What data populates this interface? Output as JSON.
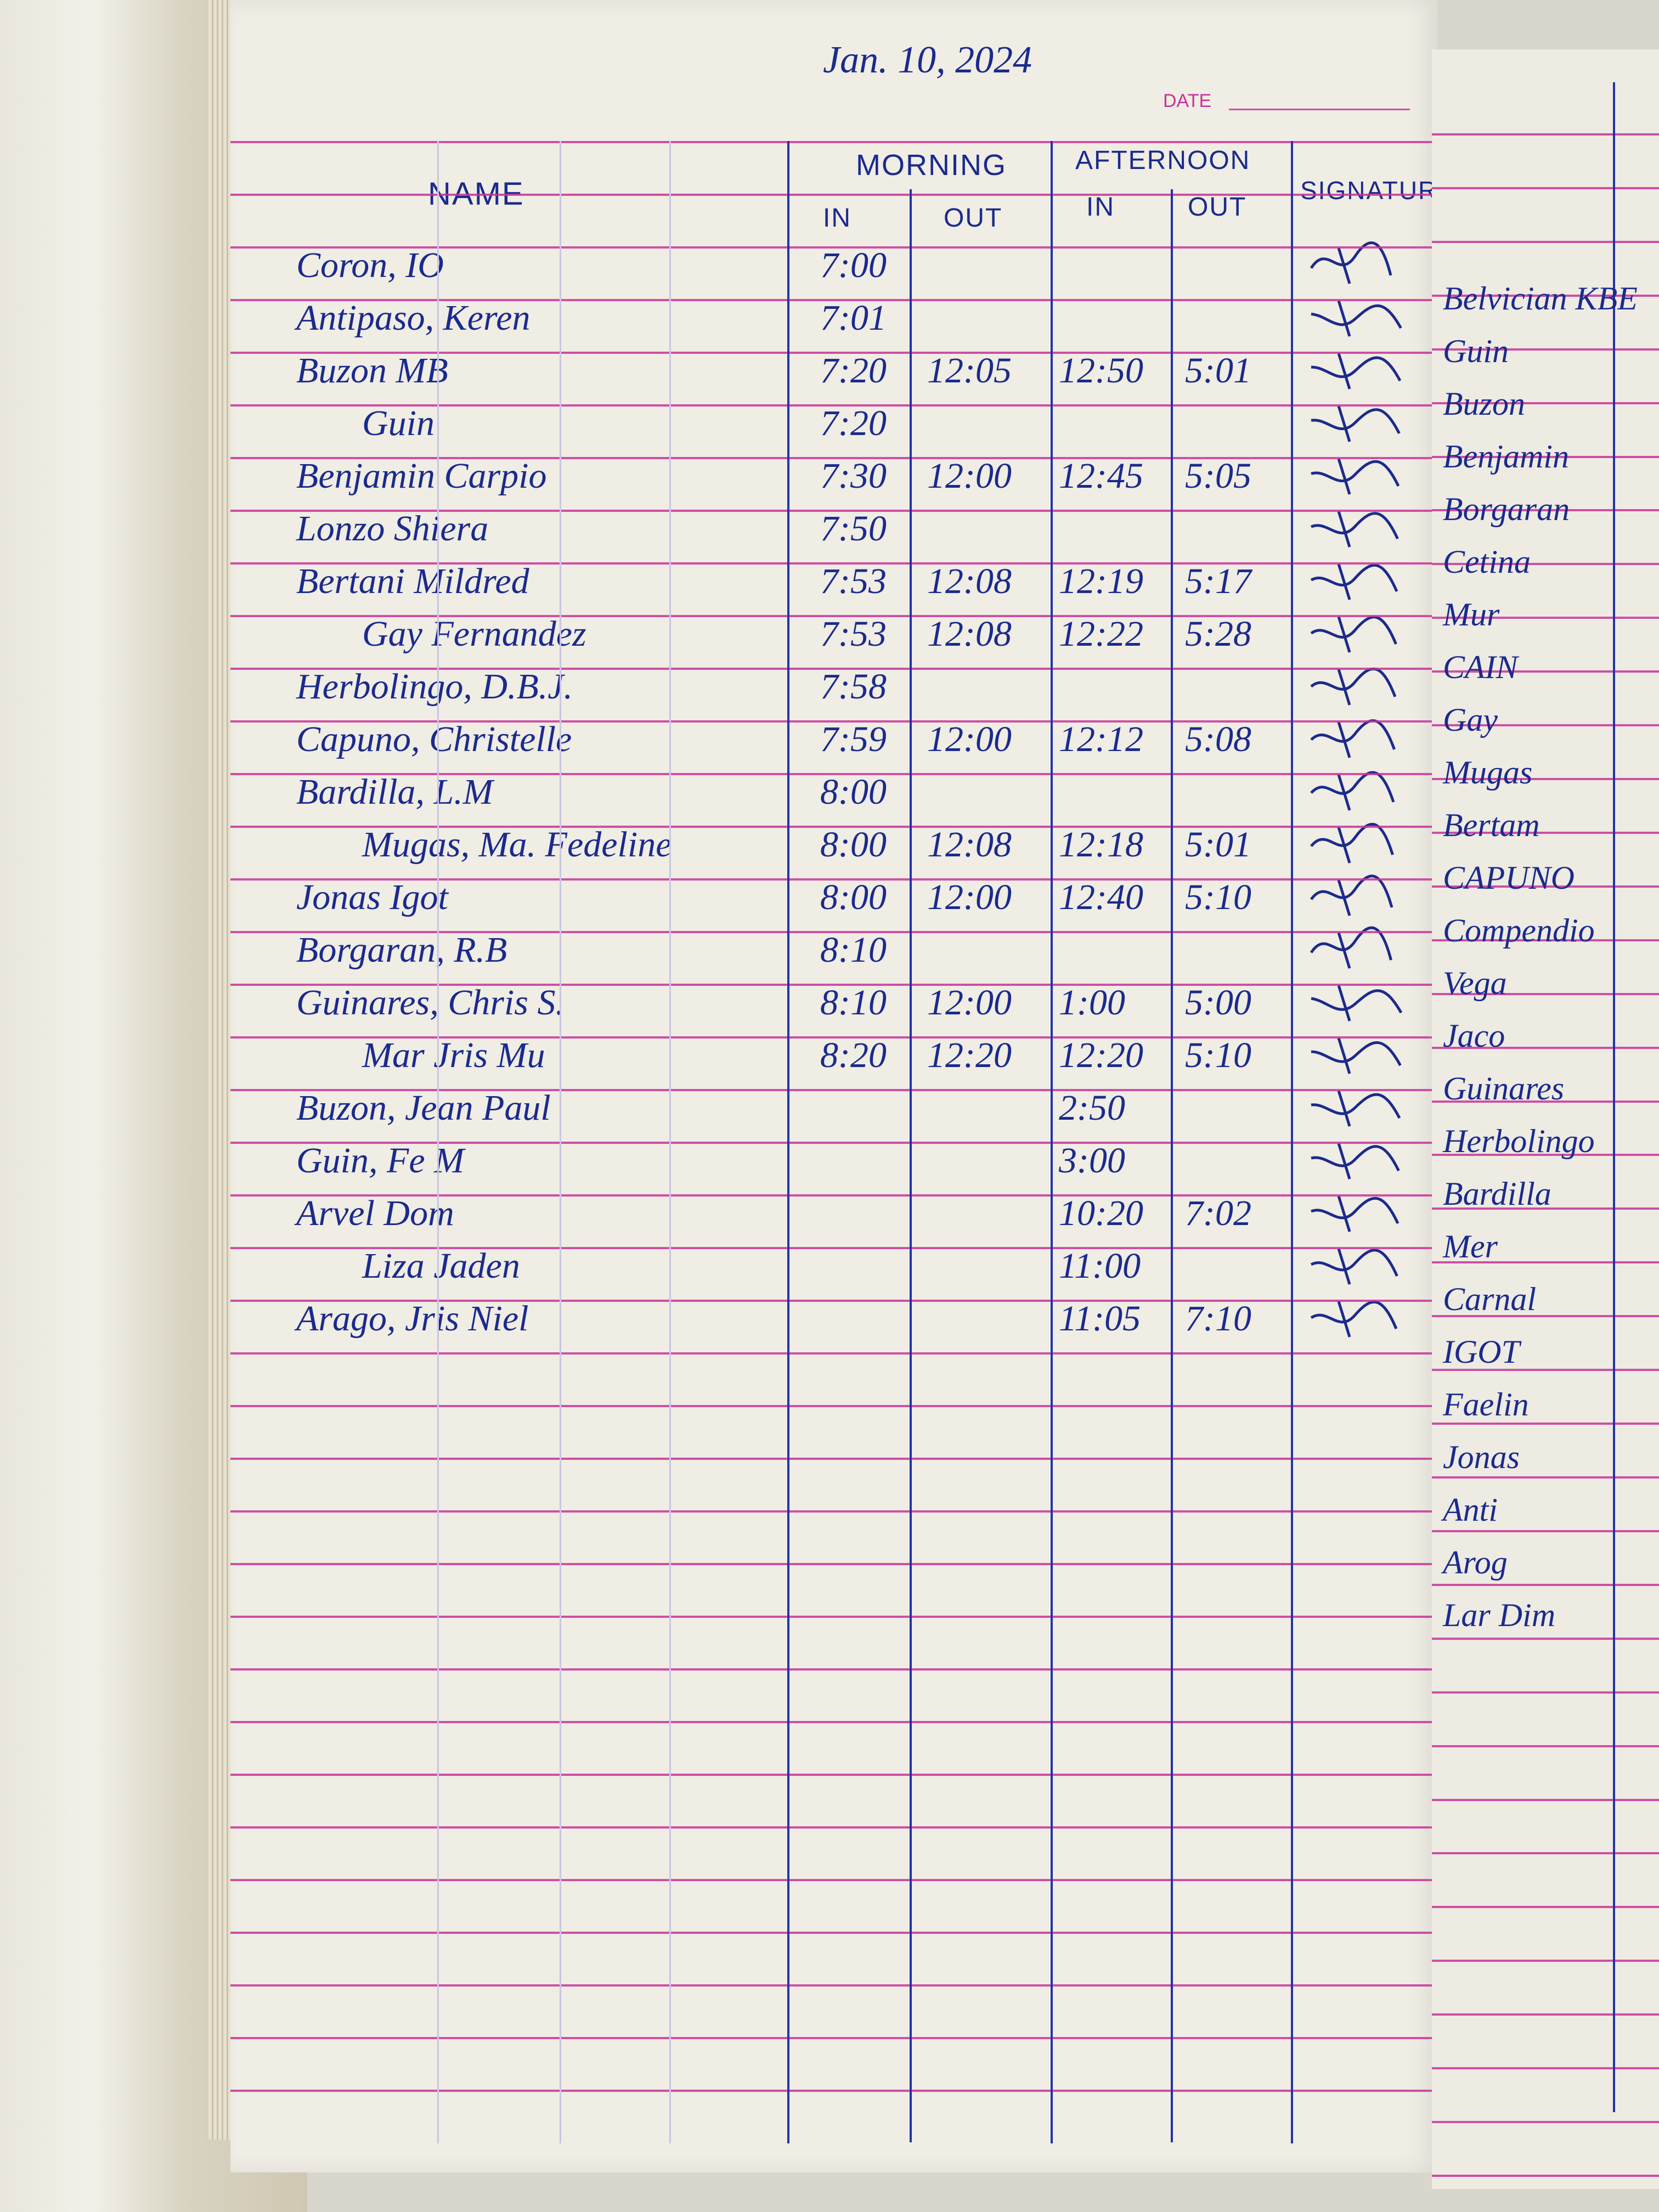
{
  "header": {
    "date_label": "DATE",
    "date_value": "Jan. 10, 2024",
    "name": "NAME",
    "morning": "MORNING",
    "afternoon": "AFTERNOON",
    "signature": "SIGNATURE",
    "in": "IN",
    "out": "OUT"
  },
  "colors": {
    "rule": "#c8329a",
    "column_line": "#2433a8",
    "ink": "#1b2a8c",
    "paper": "#efede4"
  },
  "rows": [
    {
      "name": "Coron, IO",
      "am_in": "7:00",
      "am_out": "",
      "pm_in": "",
      "pm_out": ""
    },
    {
      "name": "Antipaso, Keren",
      "am_in": "7:01",
      "am_out": "",
      "pm_in": "",
      "pm_out": ""
    },
    {
      "name": "Buzon MB",
      "am_in": "7:20",
      "am_out": "12:05",
      "pm_in": "12:50",
      "pm_out": "5:01"
    },
    {
      "name": "Guin",
      "am_in": "7:20",
      "am_out": "",
      "pm_in": "",
      "pm_out": ""
    },
    {
      "name": "Benjamin Carpio",
      "am_in": "7:30",
      "am_out": "12:00",
      "pm_in": "12:45",
      "pm_out": "5:05"
    },
    {
      "name": "Lonzo Shiera",
      "am_in": "7:50",
      "am_out": "",
      "pm_in": "",
      "pm_out": ""
    },
    {
      "name": "Bertani Mildred",
      "am_in": "7:53",
      "am_out": "12:08",
      "pm_in": "12:19",
      "pm_out": "5:17"
    },
    {
      "name": "Gay Fernandez",
      "am_in": "7:53",
      "am_out": "12:08",
      "pm_in": "12:22",
      "pm_out": "5:28"
    },
    {
      "name": "Herbolingo, D.B.J.",
      "am_in": "7:58",
      "am_out": "",
      "pm_in": "",
      "pm_out": ""
    },
    {
      "name": "Capuno, Christelle",
      "am_in": "7:59",
      "am_out": "12:00",
      "pm_in": "12:12",
      "pm_out": "5:08"
    },
    {
      "name": "Bardilla, L.M",
      "am_in": "8:00",
      "am_out": "",
      "pm_in": "",
      "pm_out": ""
    },
    {
      "name": "Mugas, Ma. Fedeline",
      "am_in": "8:00",
      "am_out": "12:08",
      "pm_in": "12:18",
      "pm_out": "5:01"
    },
    {
      "name": "Jonas Igot",
      "am_in": "8:00",
      "am_out": "12:00",
      "pm_in": "12:40",
      "pm_out": "5:10"
    },
    {
      "name": "Borgaran, R.B",
      "am_in": "8:10",
      "am_out": "",
      "pm_in": "",
      "pm_out": ""
    },
    {
      "name": "Guinares, Chris S.",
      "am_in": "8:10",
      "am_out": "12:00",
      "pm_in": "1:00",
      "pm_out": "5:00"
    },
    {
      "name": "Mar Jris Mu",
      "am_in": "8:20",
      "am_out": "12:20",
      "pm_in": "12:20",
      "pm_out": "5:10"
    },
    {
      "name": "Buzon, Jean Paul",
      "am_in": "",
      "am_out": "",
      "pm_in": "2:50",
      "pm_out": ""
    },
    {
      "name": "Guin, Fe M",
      "am_in": "",
      "am_out": "",
      "pm_in": "3:00",
      "pm_out": ""
    },
    {
      "name": "Arvel Dom",
      "am_in": "",
      "am_out": "",
      "pm_in": "10:20",
      "pm_out": "7:02"
    },
    {
      "name": "Liza Jaden",
      "am_in": "",
      "am_out": "",
      "pm_in": "11:00",
      "pm_out": ""
    },
    {
      "name": "Arago, Jris Niel",
      "am_in": "",
      "am_out": "",
      "pm_in": "11:05",
      "pm_out": "7:10"
    }
  ],
  "right_page_names": [
    "Belvician KBE",
    "Guin",
    "Buzon",
    "Benjamin",
    "Borgaran",
    "Cetina",
    "Mur",
    "CAIN",
    "Gay",
    "Mugas",
    "Bertam",
    "CAPUNO",
    "Compendio",
    "Vega",
    "Jaco",
    "Guinares",
    "Herbolingo",
    "Bardilla",
    "Mer",
    "Carnal",
    "IGOT",
    "Faelin",
    "Jonas",
    "Anti",
    "Arog",
    "Lar Dim"
  ]
}
